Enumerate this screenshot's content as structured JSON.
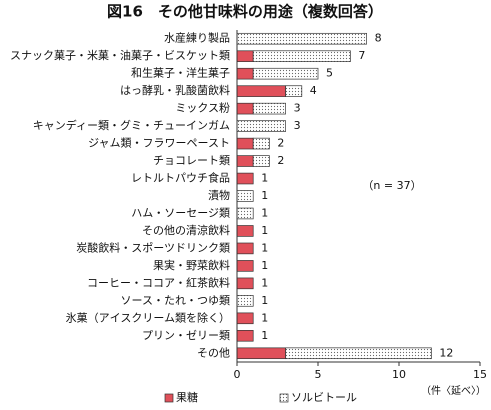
{
  "chart_data": {
    "type": "stacked-bar-horizontal",
    "title": "図16　その他甘味料の用途（複数回答）",
    "annotation": "（n = 37）",
    "x_label": "（件〈延べ〉）",
    "categories": [
      "水産練り製品",
      "スナック菓子・米菓・油菓子・ビスケット類",
      "和生菓子・洋生菓子",
      "はっ酵乳・乳酸菌飲料",
      "ミックス粉",
      "キャンディー類・グミ・チューインガム",
      "ジャム類・フラワーペースト",
      "チョコレート類",
      "レトルトパウチ食品",
      "漬物",
      "ハム・ソーセージ類",
      "その他の清涼飲料",
      "炭酸飲料・スポーツドリンク類",
      "果実・野菜飲料",
      "コーヒー・ココア・紅茶飲料",
      "ソース・たれ・つゆ類",
      "氷菓（アイスクリーム類を除く）",
      "プリン・ゼリー類",
      "その他"
    ],
    "series": [
      {
        "name": "果糖",
        "color": "#e0505a",
        "values": [
          0,
          1,
          1,
          3,
          1,
          0,
          1,
          1,
          1,
          0,
          0,
          1,
          1,
          1,
          1,
          0,
          1,
          1,
          3
        ]
      },
      {
        "name": "ソルビトール",
        "color": "dotted",
        "values": [
          8,
          6,
          4,
          1,
          2,
          3,
          1,
          1,
          0,
          1,
          1,
          0,
          0,
          0,
          0,
          1,
          0,
          0,
          9
        ]
      }
    ],
    "totals": [
      8,
      7,
      5,
      4,
      3,
      3,
      2,
      2,
      1,
      1,
      1,
      1,
      1,
      1,
      1,
      1,
      1,
      1,
      12
    ],
    "xlim": [
      0,
      15
    ],
    "xticks": [
      0,
      5,
      10,
      15
    ]
  }
}
